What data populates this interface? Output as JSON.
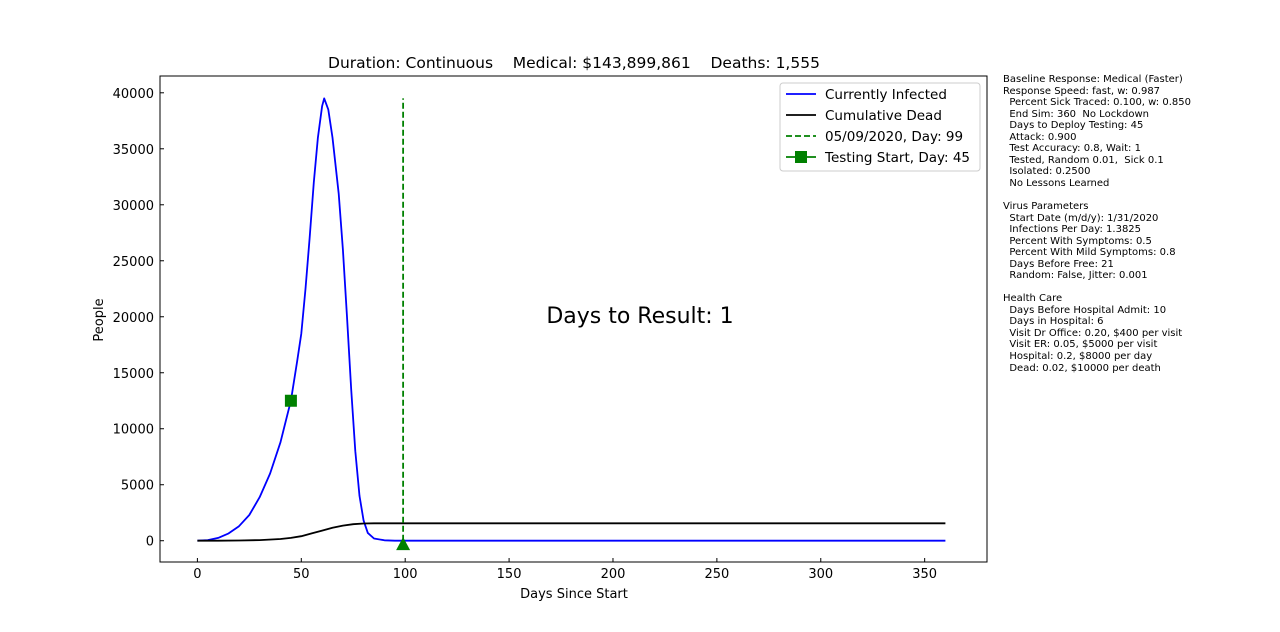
{
  "chart_data": {
    "type": "line",
    "title": "Duration: Continuous    Medical: $143,899,861    Deaths: 1,555",
    "xlabel": "Days Since Start",
    "ylabel": "People",
    "xlim": [
      -18,
      380
    ],
    "ylim": [
      -1900,
      41500
    ],
    "xticks": [
      0,
      50,
      100,
      150,
      200,
      250,
      300,
      350
    ],
    "yticks": [
      0,
      5000,
      10000,
      15000,
      20000,
      25000,
      30000,
      35000,
      40000
    ],
    "grid": false,
    "legend_position": "top-right",
    "annotation": "Days to Result: 1",
    "series": [
      {
        "name": "Currently Infected",
        "color": "#0000ff",
        "style": "solid",
        "points": [
          [
            0,
            0
          ],
          [
            5,
            60
          ],
          [
            10,
            250
          ],
          [
            15,
            650
          ],
          [
            20,
            1300
          ],
          [
            25,
            2300
          ],
          [
            30,
            3900
          ],
          [
            35,
            6000
          ],
          [
            40,
            8800
          ],
          [
            42,
            10300
          ],
          [
            45,
            12500
          ],
          [
            48,
            16000
          ],
          [
            50,
            18500
          ],
          [
            52,
            22500
          ],
          [
            54,
            27000
          ],
          [
            56,
            32000
          ],
          [
            58,
            36000
          ],
          [
            60,
            38800
          ],
          [
            61,
            39500
          ],
          [
            63,
            38500
          ],
          [
            65,
            36000
          ],
          [
            68,
            31000
          ],
          [
            70,
            26000
          ],
          [
            72,
            20000
          ],
          [
            74,
            13500
          ],
          [
            76,
            8000
          ],
          [
            78,
            4000
          ],
          [
            80,
            1800
          ],
          [
            82,
            700
          ],
          [
            85,
            200
          ],
          [
            90,
            40
          ],
          [
            95,
            0
          ],
          [
            100,
            0
          ],
          [
            150,
            0
          ],
          [
            200,
            0
          ],
          [
            250,
            0
          ],
          [
            300,
            0
          ],
          [
            360,
            0
          ]
        ]
      },
      {
        "name": "Cumulative Dead",
        "color": "#000000",
        "style": "solid",
        "points": [
          [
            0,
            0
          ],
          [
            10,
            5
          ],
          [
            20,
            20
          ],
          [
            30,
            60
          ],
          [
            40,
            150
          ],
          [
            45,
            250
          ],
          [
            50,
            400
          ],
          [
            55,
            650
          ],
          [
            60,
            900
          ],
          [
            65,
            1150
          ],
          [
            70,
            1350
          ],
          [
            75,
            1480
          ],
          [
            80,
            1540
          ],
          [
            85,
            1555
          ],
          [
            100,
            1555
          ],
          [
            200,
            1555
          ],
          [
            300,
            1555
          ],
          [
            360,
            1555
          ]
        ]
      },
      {
        "name": "05/09/2020, Day: 99",
        "color": "#008000",
        "style": "dashed",
        "x": 99,
        "y_range": [
          0,
          39500
        ],
        "marker": "triangle-up",
        "marker_y": -300
      },
      {
        "name": "Testing Start, Day: 45",
        "color": "#008000",
        "style": "marker",
        "marker": "square",
        "points": [
          [
            45,
            12500
          ]
        ]
      }
    ]
  },
  "side_panel": {
    "sections": [
      {
        "lines": [
          "Baseline Response: Medical (Faster)",
          "Response Speed: fast, w: 0.987",
          "  Percent Sick Traced: 0.100, w: 0.850",
          "  End Sim: 360  No Lockdown",
          "  Days to Deploy Testing: 45",
          "  Attack: 0.900",
          "  Test Accuracy: 0.8, Wait: 1",
          "  Tested, Random 0.01,  Sick 0.1",
          "  Isolated: 0.2500",
          "  No Lessons Learned"
        ]
      },
      {
        "lines": [
          "Virus Parameters",
          "  Start Date (m/d/y): 1/31/2020",
          "  Infections Per Day: 1.3825",
          "  Percent With Symptoms: 0.5",
          "  Percent With Mild Symptoms: 0.8",
          "  Days Before Free: 21",
          "  Random: False, Jitter: 0.001"
        ]
      },
      {
        "lines": [
          "Health Care",
          "  Days Before Hospital Admit: 10",
          "  Days in Hospital: 6",
          "  Visit Dr Office: 0.20, $400 per visit",
          "  Visit ER: 0.05, $5000 per visit",
          "  Hospital: 0.2, $8000 per day",
          "  Dead: 0.02, $10000 per death"
        ]
      }
    ]
  }
}
